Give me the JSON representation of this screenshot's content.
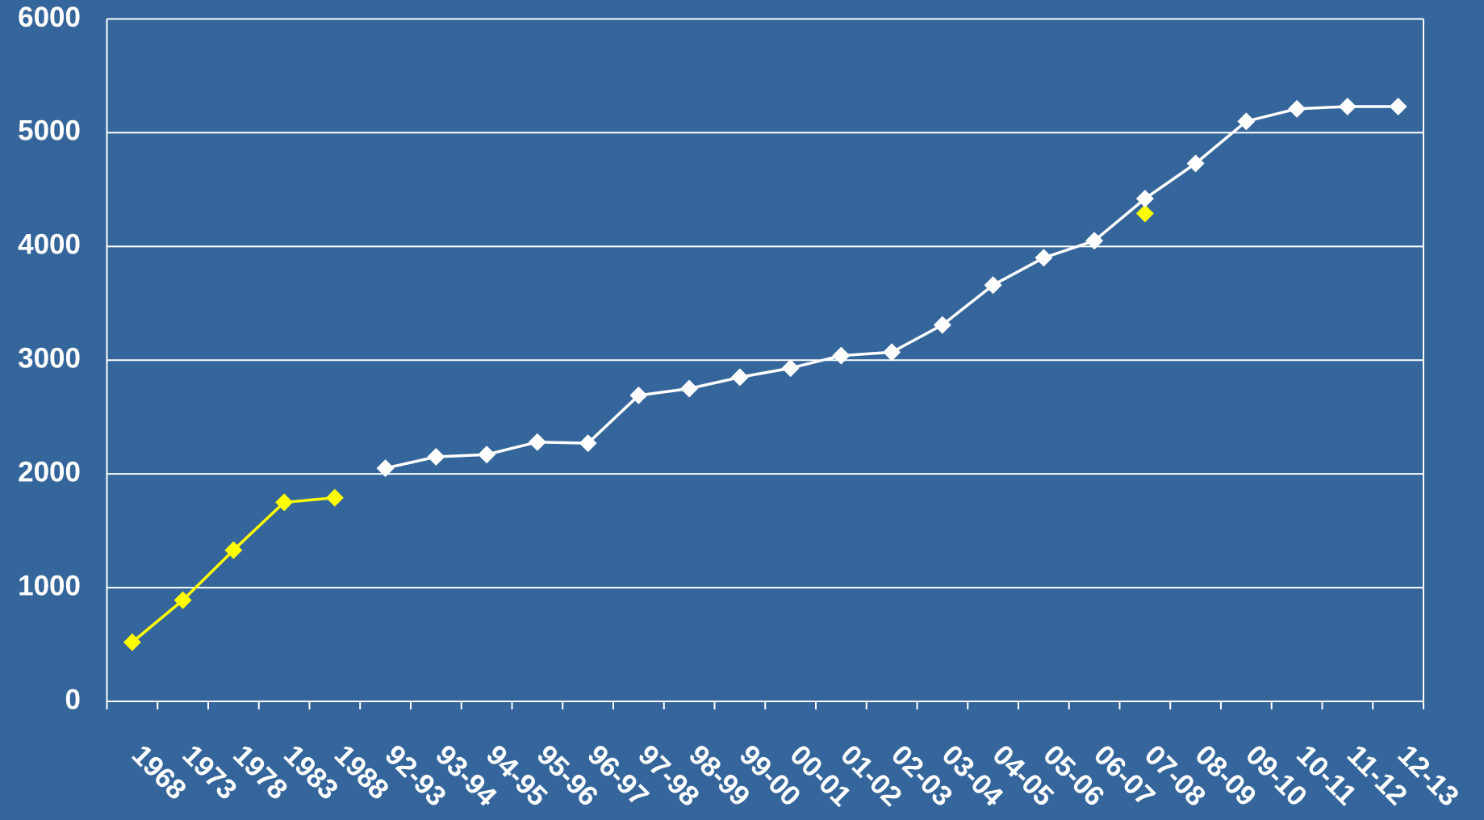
{
  "chart_data": {
    "type": "line",
    "categories": [
      "1968",
      "1973",
      "1978",
      "1983",
      "1988",
      "92-93",
      "93-94",
      "94-95",
      "95-96",
      "96-97",
      "97-98",
      "98-99",
      "99-00",
      "00-01",
      "01-02",
      "02-03",
      "03-04",
      "04-05",
      "05-06",
      "06-07",
      "07-08",
      "08-09",
      "09-10",
      "10-11",
      "11-12",
      "12-13"
    ],
    "series": [
      {
        "color": "#ffff00",
        "values": [
          520,
          890,
          1330,
          1750,
          1790,
          null,
          null,
          null,
          null,
          null,
          null,
          null,
          null,
          null,
          null,
          null,
          null,
          null,
          null,
          null,
          4290,
          null,
          null,
          null,
          null,
          null
        ]
      },
      {
        "color": "#ffffff",
        "values": [
          null,
          null,
          null,
          null,
          null,
          2050,
          2150,
          2170,
          2280,
          2270,
          2690,
          2750,
          2850,
          2930,
          3040,
          3070,
          3310,
          3660,
          3900,
          4050,
          4420,
          4730,
          5100,
          5210,
          5230,
          5230
        ]
      }
    ],
    "ylim": [
      0,
      6000
    ],
    "yticks": [
      0,
      1000,
      2000,
      3000,
      4000,
      5000,
      6000
    ],
    "grid": true
  }
}
